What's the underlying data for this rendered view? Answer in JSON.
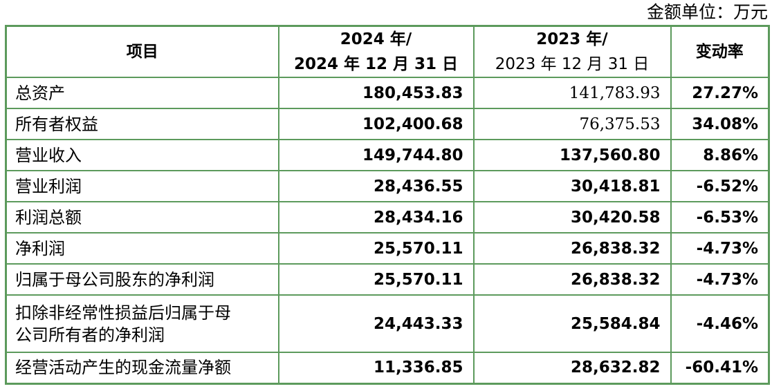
{
  "unit_label": "金额单位：万元",
  "header": {
    "item": "项目",
    "col_2024_line1": "2024 年/",
    "col_2024_line2": "2024 年 12 月 31 日",
    "col_2023_line1": "2023 年/",
    "col_2023_line2": "2023 年 12 月 31 日",
    "change": "变动率"
  },
  "rows": [
    {
      "label": "总资产",
      "v2024": "180,453.83",
      "v2023": "141,783.93",
      "change": "27.27%"
    },
    {
      "label": "所有者权益",
      "v2024": "102,400.68",
      "v2023": "76,375.53",
      "change": "34.08%"
    },
    {
      "label": "营业收入",
      "v2024": "149,744.80",
      "v2023": "137,560.80",
      "change": "8.86%"
    },
    {
      "label": "营业利润",
      "v2024": "28,436.55",
      "v2023": "30,418.81",
      "change": "-6.52%"
    },
    {
      "label": "利润总额",
      "v2024": "28,434.16",
      "v2023": "30,420.58",
      "change": "-6.53%"
    },
    {
      "label": "净利润",
      "v2024": "25,570.11",
      "v2023": "26,838.32",
      "change": "-4.73%"
    },
    {
      "label": "归属于母公司股东的净利润",
      "v2024": "25,570.11",
      "v2023": "26,838.32",
      "change": "-4.73%"
    },
    {
      "label_line1": "扣除非经常性损益后归属于母",
      "label_line2": "公司所有者的净利润",
      "v2024": "24,443.33",
      "v2023": "25,584.84",
      "change": "-4.46%"
    },
    {
      "label": "经营活动产生的现金流量净额",
      "v2024": "11,336.85",
      "v2023": "28,632.82",
      "change": "-60.41%"
    }
  ]
}
